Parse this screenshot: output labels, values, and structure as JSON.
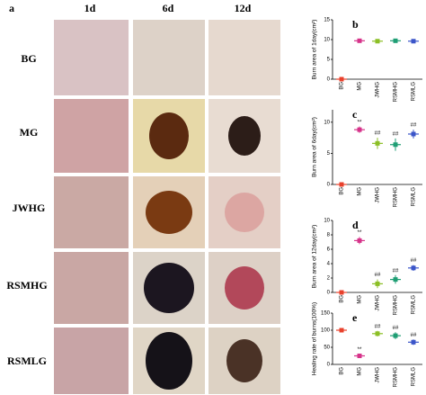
{
  "figure": {
    "panel_label": "a",
    "columns": [
      "1d",
      "6d",
      "12d"
    ],
    "rows": [
      "BG",
      "MG",
      "JWHG",
      "RSMHG",
      "RSMLG"
    ]
  },
  "chart_data": [
    {
      "type": "dotplot",
      "panel_label": "b",
      "y_label": "Burn area of 1day(cm²)",
      "categories": [
        "BG",
        "MG",
        "JWHG",
        "RSMHG",
        "RSMLG"
      ],
      "values": [
        0,
        9.7,
        9.6,
        9.7,
        9.6
      ],
      "errors": [
        0,
        0.2,
        0.2,
        0.2,
        0.2
      ],
      "annotations": [
        null,
        null,
        null,
        null,
        null
      ],
      "colors": [
        "#e8412c",
        "#d6338a",
        "#8cbf26",
        "#1f9e74",
        "#3b55c9"
      ],
      "ylim": [
        0,
        15
      ],
      "yticks": [
        0,
        5,
        10,
        15
      ]
    },
    {
      "type": "dotplot",
      "panel_label": "c",
      "y_label": "Burn area of 6day(cm²)",
      "categories": [
        "BG",
        "MG",
        "JWHG",
        "RSMHG",
        "RSMLG"
      ],
      "values": [
        0,
        8.8,
        6.6,
        6.4,
        8.1
      ],
      "errors": [
        0,
        0.5,
        0.9,
        1.0,
        0.7
      ],
      "annotations": [
        null,
        "**",
        "##",
        "##",
        "##"
      ],
      "colors": [
        "#e8412c",
        "#d6338a",
        "#8cbf26",
        "#1f9e74",
        "#3b55c9"
      ],
      "ylim": [
        0,
        12
      ],
      "yticks": [
        0,
        5,
        10
      ]
    },
    {
      "type": "dotplot",
      "panel_label": "d",
      "y_label": "Burn area of 12day(cm²)",
      "categories": [
        "BG",
        "MG",
        "JWHG",
        "RSMHG",
        "RSMLG"
      ],
      "values": [
        0,
        7.2,
        1.2,
        1.8,
        3.4
      ],
      "errors": [
        0,
        0.5,
        0.6,
        0.6,
        0.4
      ],
      "annotations": [
        null,
        "**",
        "##",
        "##",
        "##"
      ],
      "colors": [
        "#e8412c",
        "#d6338a",
        "#8cbf26",
        "#1f9e74",
        "#3b55c9"
      ],
      "ylim": [
        0,
        10
      ],
      "yticks": [
        0,
        2,
        4,
        6,
        8,
        10
      ]
    },
    {
      "type": "dotplot",
      "panel_label": "e",
      "y_label": "Healing rate of burns(100%)",
      "categories": [
        "BG",
        "MG",
        "JWHG",
        "RSMHG",
        "RSMLG"
      ],
      "values": [
        100,
        25,
        90,
        84,
        65
      ],
      "errors": [
        0,
        5,
        8,
        10,
        8
      ],
      "annotations": [
        null,
        "**",
        "##",
        "##",
        "##"
      ],
      "colors": [
        "#e8412c",
        "#d6338a",
        "#8cbf26",
        "#1f9e74",
        "#3b55c9"
      ],
      "ylim": [
        0,
        150
      ],
      "yticks": [
        0,
        50,
        100,
        150
      ]
    }
  ]
}
